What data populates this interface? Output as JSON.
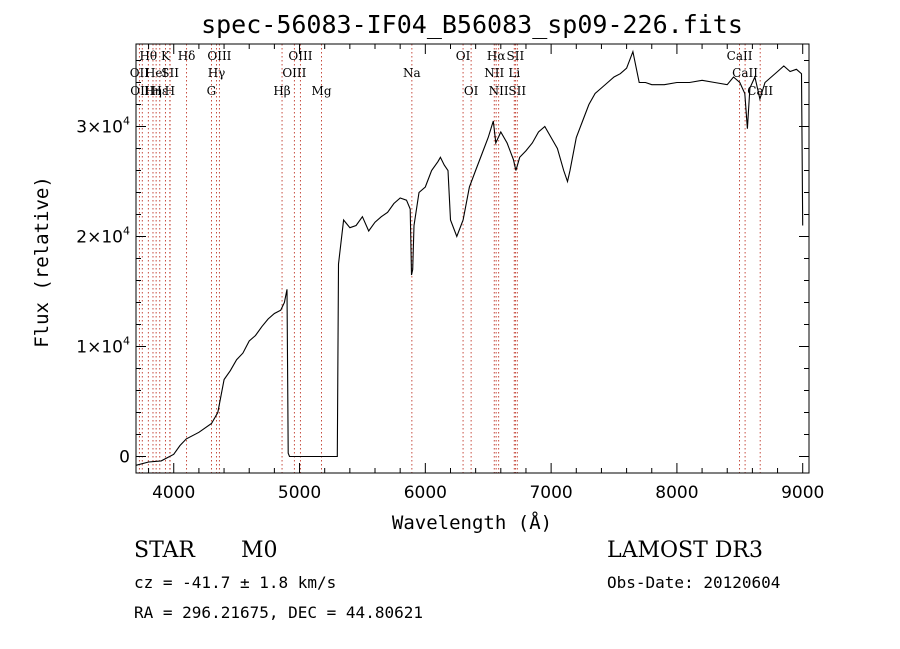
{
  "chart_data": {
    "type": "line",
    "title": "spec-56083-IF04_B56083_sp09-226.fits",
    "xlabel": "Wavelength (Å)",
    "ylabel": "Flux (relative)",
    "xlim": [
      3700,
      9050
    ],
    "ylim": [
      -1500,
      37500
    ],
    "xticks": [
      4000,
      5000,
      6000,
      7000,
      8000,
      9000
    ],
    "yticks": [
      {
        "value": 0,
        "mantissa": "0",
        "exponent": ""
      },
      {
        "value": 10000,
        "mantissa": "1×10",
        "exponent": "4"
      },
      {
        "value": 20000,
        "mantissa": "2×10",
        "exponent": "4"
      },
      {
        "value": 30000,
        "mantissa": "3×10",
        "exponent": "4"
      }
    ],
    "series": [
      {
        "name": "flux",
        "points": [
          [
            3700,
            -800
          ],
          [
            3800,
            -500
          ],
          [
            3900,
            -400
          ],
          [
            4000,
            200
          ],
          [
            4050,
            1000
          ],
          [
            4100,
            1600
          ],
          [
            4200,
            2200
          ],
          [
            4300,
            3000
          ],
          [
            4350,
            4000
          ],
          [
            4400,
            7000
          ],
          [
            4450,
            7800
          ],
          [
            4500,
            8800
          ],
          [
            4550,
            9400
          ],
          [
            4600,
            10500
          ],
          [
            4650,
            11000
          ],
          [
            4700,
            11800
          ],
          [
            4750,
            12500
          ],
          [
            4800,
            13000
          ],
          [
            4850,
            13300
          ],
          [
            4880,
            14000
          ],
          [
            4900,
            15200
          ],
          [
            4910,
            300
          ],
          [
            4920,
            0
          ],
          [
            5000,
            0
          ],
          [
            5100,
            0
          ],
          [
            5200,
            0
          ],
          [
            5300,
            0
          ],
          [
            5310,
            17500
          ],
          [
            5350,
            21500
          ],
          [
            5400,
            20800
          ],
          [
            5450,
            21000
          ],
          [
            5500,
            21800
          ],
          [
            5550,
            20500
          ],
          [
            5600,
            21300
          ],
          [
            5650,
            21800
          ],
          [
            5700,
            22200
          ],
          [
            5750,
            23000
          ],
          [
            5800,
            23500
          ],
          [
            5850,
            23300
          ],
          [
            5880,
            22500
          ],
          [
            5890,
            16500
          ],
          [
            5900,
            17000
          ],
          [
            5910,
            21000
          ],
          [
            5950,
            24000
          ],
          [
            6000,
            24500
          ],
          [
            6050,
            26000
          ],
          [
            6100,
            26800
          ],
          [
            6120,
            27200
          ],
          [
            6150,
            26500
          ],
          [
            6180,
            26000
          ],
          [
            6200,
            21500
          ],
          [
            6250,
            20000
          ],
          [
            6300,
            21500
          ],
          [
            6350,
            24500
          ],
          [
            6400,
            26000
          ],
          [
            6450,
            27500
          ],
          [
            6500,
            29000
          ],
          [
            6540,
            30500
          ],
          [
            6560,
            28500
          ],
          [
            6600,
            29500
          ],
          [
            6650,
            28500
          ],
          [
            6700,
            27000
          ],
          [
            6720,
            26000
          ],
          [
            6750,
            27200
          ],
          [
            6800,
            27800
          ],
          [
            6850,
            28500
          ],
          [
            6900,
            29500
          ],
          [
            6950,
            30000
          ],
          [
            7000,
            29000
          ],
          [
            7050,
            28000
          ],
          [
            7100,
            26000
          ],
          [
            7130,
            25000
          ],
          [
            7150,
            26000
          ],
          [
            7200,
            29000
          ],
          [
            7250,
            30500
          ],
          [
            7300,
            32000
          ],
          [
            7350,
            33000
          ],
          [
            7400,
            33500
          ],
          [
            7450,
            34000
          ],
          [
            7500,
            34500
          ],
          [
            7550,
            34800
          ],
          [
            7600,
            35300
          ],
          [
            7650,
            36800
          ],
          [
            7700,
            34000
          ],
          [
            7750,
            34000
          ],
          [
            7800,
            33800
          ],
          [
            7900,
            33800
          ],
          [
            8000,
            34000
          ],
          [
            8100,
            34000
          ],
          [
            8200,
            34200
          ],
          [
            8300,
            34000
          ],
          [
            8400,
            33800
          ],
          [
            8450,
            34500
          ],
          [
            8500,
            34000
          ],
          [
            8540,
            33000
          ],
          [
            8560,
            29800
          ],
          [
            8580,
            33500
          ],
          [
            8620,
            34500
          ],
          [
            8660,
            32500
          ],
          [
            8700,
            34000
          ],
          [
            8750,
            34500
          ],
          [
            8800,
            35000
          ],
          [
            8850,
            35500
          ],
          [
            8900,
            35000
          ],
          [
            8950,
            35200
          ],
          [
            8990,
            34800
          ],
          [
            9000,
            21000
          ]
        ]
      }
    ],
    "lines": [
      {
        "wavelength": 3727,
        "label": "OII",
        "row": 2
      },
      {
        "wavelength": 3750,
        "label": "OIII",
        "row": 3
      },
      {
        "wavelength": 3798,
        "label": "Hθ",
        "row": 1
      },
      {
        "wavelength": 3835,
        "label": "Hη",
        "row": 3
      },
      {
        "wavelength": 3860,
        "label": "HeI",
        "row": 2
      },
      {
        "wavelength": 3889,
        "label": "Hε",
        "row": 3
      },
      {
        "wavelength": 3934,
        "label": "K",
        "row": 1
      },
      {
        "wavelength": 3969,
        "label": "H",
        "row": 3
      },
      {
        "wavelength": 3971,
        "label": "SII",
        "row": 2
      },
      {
        "wavelength": 4102,
        "label": "Hδ",
        "row": 1
      },
      {
        "wavelength": 4300,
        "label": "G",
        "row": 3
      },
      {
        "wavelength": 4340,
        "label": "Hγ",
        "row": 2
      },
      {
        "wavelength": 4363,
        "label": "OIII",
        "row": 1
      },
      {
        "wavelength": 4861,
        "label": "Hβ",
        "row": 3
      },
      {
        "wavelength": 4959,
        "label": "OIII",
        "row": 2
      },
      {
        "wavelength": 5007,
        "label": "OIII",
        "row": 1
      },
      {
        "wavelength": 5175,
        "label": "Mg",
        "row": 3
      },
      {
        "wavelength": 5893,
        "label": "Na",
        "row": 2
      },
      {
        "wavelength": 6300,
        "label": "OI",
        "row": 1
      },
      {
        "wavelength": 6364,
        "label": "OI",
        "row": 3
      },
      {
        "wavelength": 6548,
        "label": "NII",
        "row": 2
      },
      {
        "wavelength": 6563,
        "label": "Hα",
        "row": 1
      },
      {
        "wavelength": 6583,
        "label": "NII",
        "row": 3
      },
      {
        "wavelength": 6707,
        "label": "Li",
        "row": 2
      },
      {
        "wavelength": 6716,
        "label": "SII",
        "row": 1
      },
      {
        "wavelength": 6731,
        "label": "SII",
        "row": 3
      },
      {
        "wavelength": 8498,
        "label": "CaII",
        "row": 1
      },
      {
        "wavelength": 8542,
        "label": "CaII",
        "row": 2
      },
      {
        "wavelength": 8662,
        "label": "CaII",
        "row": 3
      }
    ]
  },
  "info": {
    "class_label": "STAR",
    "subclass": "M0",
    "survey": "LAMOST DR3",
    "redshift": "cz = -41.7 ± 1.8 km/s",
    "obs_date": "Obs-Date: 20120604",
    "coords": "RA = 296.21675, DEC =  44.80621"
  }
}
